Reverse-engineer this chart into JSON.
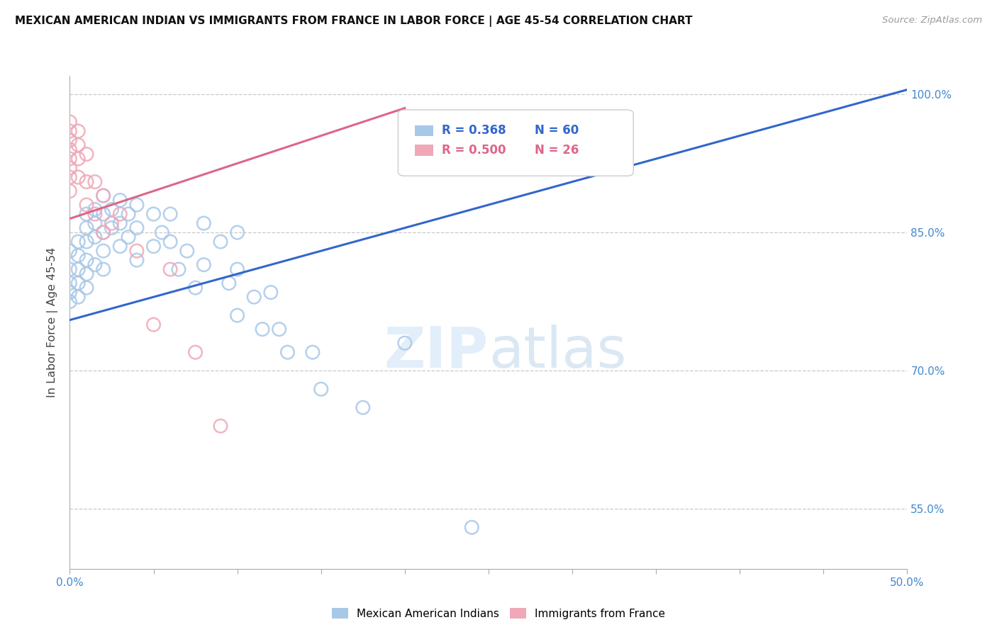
{
  "title": "MEXICAN AMERICAN INDIAN VS IMMIGRANTS FROM FRANCE IN LABOR FORCE | AGE 45-54 CORRELATION CHART",
  "source": "Source: ZipAtlas.com",
  "ylabel": "In Labor Force | Age 45-54",
  "xlim": [
    0.0,
    0.5
  ],
  "ylim": [
    0.485,
    1.02
  ],
  "xticks": [
    0.0,
    0.05,
    0.1,
    0.15,
    0.2,
    0.25,
    0.3,
    0.35,
    0.4,
    0.45,
    0.5
  ],
  "ytick_positions": [
    0.55,
    0.7,
    0.85,
    1.0
  ],
  "ytick_labels": [
    "55.0%",
    "70.0%",
    "85.0%",
    "100.0%"
  ],
  "grid_color": "#c8c8c8",
  "background_color": "#ffffff",
  "blue_color": "#a8c8e8",
  "pink_color": "#f0a8b8",
  "blue_line_color": "#3366cc",
  "pink_line_color": "#dd6688",
  "legend_blue_r": "R = 0.368",
  "legend_blue_n": "N = 60",
  "legend_pink_r": "R = 0.500",
  "legend_pink_n": "N = 26",
  "watermark_zip": "ZIP",
  "watermark_atlas": "atlas",
  "blue_points_x": [
    0.0,
    0.0,
    0.0,
    0.0,
    0.0,
    0.005,
    0.005,
    0.005,
    0.005,
    0.005,
    0.01,
    0.01,
    0.01,
    0.01,
    0.01,
    0.01,
    0.015,
    0.015,
    0.015,
    0.015,
    0.02,
    0.02,
    0.02,
    0.02,
    0.02,
    0.025,
    0.025,
    0.03,
    0.03,
    0.03,
    0.035,
    0.035,
    0.04,
    0.04,
    0.04,
    0.05,
    0.05,
    0.055,
    0.06,
    0.06,
    0.065,
    0.07,
    0.075,
    0.08,
    0.08,
    0.09,
    0.095,
    0.1,
    0.1,
    0.1,
    0.11,
    0.115,
    0.12,
    0.125,
    0.13,
    0.145,
    0.15,
    0.175,
    0.2,
    0.24
  ],
  "blue_points_y": [
    0.83,
    0.81,
    0.795,
    0.785,
    0.775,
    0.84,
    0.825,
    0.81,
    0.795,
    0.78,
    0.87,
    0.855,
    0.84,
    0.82,
    0.805,
    0.79,
    0.875,
    0.86,
    0.845,
    0.815,
    0.89,
    0.87,
    0.85,
    0.83,
    0.81,
    0.875,
    0.855,
    0.885,
    0.86,
    0.835,
    0.87,
    0.845,
    0.88,
    0.855,
    0.82,
    0.87,
    0.835,
    0.85,
    0.87,
    0.84,
    0.81,
    0.83,
    0.79,
    0.86,
    0.815,
    0.84,
    0.795,
    0.85,
    0.81,
    0.76,
    0.78,
    0.745,
    0.785,
    0.745,
    0.72,
    0.72,
    0.68,
    0.66,
    0.73,
    0.53
  ],
  "pink_points_x": [
    0.0,
    0.0,
    0.0,
    0.0,
    0.0,
    0.0,
    0.0,
    0.0,
    0.005,
    0.005,
    0.005,
    0.005,
    0.01,
    0.01,
    0.01,
    0.015,
    0.015,
    0.02,
    0.02,
    0.025,
    0.03,
    0.04,
    0.05,
    0.06,
    0.075,
    0.09
  ],
  "pink_points_y": [
    0.97,
    0.96,
    0.95,
    0.94,
    0.93,
    0.92,
    0.91,
    0.895,
    0.96,
    0.945,
    0.93,
    0.91,
    0.935,
    0.905,
    0.88,
    0.905,
    0.87,
    0.89,
    0.85,
    0.86,
    0.87,
    0.83,
    0.75,
    0.81,
    0.72,
    0.64
  ],
  "blue_trendline_x": [
    0.0,
    0.5
  ],
  "blue_trendline_y": [
    0.755,
    1.005
  ],
  "pink_trendline_x": [
    0.0,
    0.2
  ],
  "pink_trendline_y": [
    0.865,
    0.985
  ]
}
